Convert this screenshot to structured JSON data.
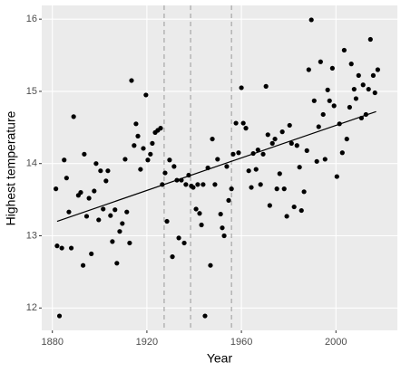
{
  "chart_data": {
    "type": "scatter",
    "x_label": "Year",
    "y_label": "Highest temperature",
    "xlim": [
      1875.5,
      2026
    ],
    "ylim": [
      11.69,
      16.19
    ],
    "xticks": [
      1880,
      1920,
      1960,
      2000
    ],
    "yticks": [
      12,
      13,
      14,
      15,
      16
    ],
    "grid": true,
    "color": "#000000",
    "x": [
      1881.5,
      1882,
      1883,
      1884,
      1885,
      1886,
      1887,
      1888,
      1889,
      1891,
      1892,
      1893,
      1893.5,
      1894.5,
      1895.5,
      1896.5,
      1897.7,
      1898.5,
      1899.6,
      1900.4,
      1901.5,
      1902.7,
      1903.5,
      1904.6,
      1905.4,
      1906.5,
      1907.3,
      1908.5,
      1909.6,
      1910.8,
      1911.5,
      1912.7,
      1913.5,
      1914.6,
      1915.4,
      1916.2,
      1917.3,
      1918.5,
      1919.6,
      1920.4,
      1921.5,
      1922.3,
      1923.5,
      1924.6,
      1925.8,
      1926.5,
      1927.7,
      1928.5,
      1929.6,
      1930.8,
      1931.5,
      1932.7,
      1933.5,
      1934.6,
      1935.8,
      1936.5,
      1937.7,
      1938.8,
      1939.6,
      1940.8,
      1941.5,
      1942.3,
      1943.1,
      1943.8,
      1944.6,
      1945.8,
      1946.9,
      1947.7,
      1948.8,
      1949.9,
      1951.2,
      1951.9,
      1952.7,
      1953.8,
      1954.6,
      1955.8,
      1956.5,
      1957.7,
      1958.8,
      1960,
      1960.8,
      1961.9,
      1963.1,
      1964.2,
      1965,
      1966.2,
      1967,
      1968.1,
      1969.2,
      1970.4,
      1971.2,
      1972,
      1973.1,
      1974.2,
      1975,
      1976.2,
      1977.3,
      1978.1,
      1979.2,
      1980.4,
      1981.2,
      1982.3,
      1983.5,
      1984.6,
      1985.4,
      1986.5,
      1987.7,
      1988.5,
      1989.6,
      1990.8,
      1991.9,
      1992.7,
      1993.5,
      1994.6,
      1995.4,
      1996.5,
      1997.3,
      1998.5,
      1999.2,
      2000.4,
      2001.5,
      2002.7,
      2003.5,
      2004.6,
      2005.8,
      2006.5,
      2007.7,
      2008.5,
      2009.6,
      2010.8,
      2011.5,
      2012.7,
      2013.8,
      2014.6,
      2015.8,
      2016.5,
      2017.7
    ],
    "y": [
      13.65,
      12.86,
      11.89,
      12.83,
      14.05,
      13.8,
      13.33,
      12.83,
      14.65,
      13.56,
      13.6,
      12.59,
      14.13,
      13.27,
      13.52,
      12.75,
      13.62,
      14.0,
      13.22,
      13.9,
      13.37,
      13.76,
      13.9,
      13.28,
      12.92,
      13.36,
      12.62,
      13.06,
      13.17,
      14.06,
      13.33,
      12.9,
      15.15,
      14.25,
      14.55,
      14.38,
      13.92,
      14.21,
      14.95,
      14.05,
      14.13,
      14.28,
      14.43,
      14.46,
      14.49,
      13.71,
      13.87,
      13.2,
      14.05,
      12.71,
      13.96,
      13.77,
      12.97,
      13.77,
      12.9,
      13.71,
      13.84,
      13.69,
      13.67,
      13.37,
      13.71,
      13.31,
      13.15,
      13.71,
      11.89,
      13.94,
      12.59,
      14.34,
      13.71,
      14.06,
      13.3,
      13.11,
      13.0,
      13.96,
      13.49,
      13.65,
      14.13,
      14.56,
      14.15,
      15.05,
      14.56,
      14.49,
      13.9,
      13.67,
      14.14,
      13.92,
      14.19,
      13.71,
      14.13,
      15.07,
      14.4,
      13.42,
      14.28,
      14.34,
      13.65,
      13.86,
      14.44,
      13.65,
      13.27,
      14.53,
      14.28,
      13.4,
      14.25,
      13.95,
      13.35,
      13.61,
      14.18,
      15.3,
      15.99,
      14.87,
      14.03,
      14.51,
      15.41,
      14.68,
      14.06,
      15.02,
      14.87,
      15.32,
      14.8,
      13.82,
      14.55,
      14.15,
      15.57,
      14.34,
      14.78,
      15.38,
      15.03,
      14.9,
      15.22,
      14.63,
      15.09,
      14.68,
      15.03,
      15.72,
      15.22,
      14.98,
      15.3
    ],
    "trend": {
      "x": [
        1882,
        2017
      ],
      "y": [
        13.2,
        14.72
      ],
      "color": "#000000"
    },
    "vlines": {
      "x": [
        1927.3,
        1938.5,
        1955.8
      ],
      "color": "#a6a6a6"
    }
  }
}
